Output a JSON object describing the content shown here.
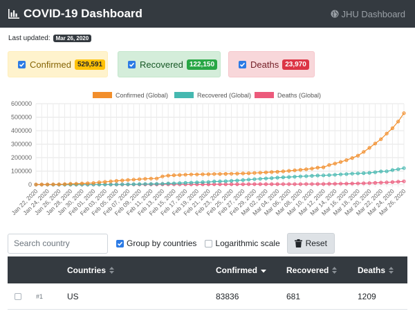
{
  "header": {
    "title": "COVID-19 Dashboard",
    "link": "JHU Dashboard"
  },
  "last_updated": {
    "label": "Last updated:",
    "date": "Mar 26, 2020"
  },
  "cards": [
    {
      "label": "Confirmed",
      "value": "529,591",
      "checked": true
    },
    {
      "label": "Recovered",
      "value": "122,150",
      "checked": true
    },
    {
      "label": "Deaths",
      "value": "23,970",
      "checked": true
    }
  ],
  "controls": {
    "search_placeholder": "Search country",
    "group_label": "Group by countries",
    "group_checked": true,
    "log_label": "Logarithmic scale",
    "log_checked": false,
    "reset_label": "Reset"
  },
  "table": {
    "columns": [
      "Countries",
      "Confirmed",
      "Recovered",
      "Deaths"
    ],
    "rows": [
      {
        "rank": "#1",
        "country": "US",
        "confirmed": "83836",
        "recovered": "681",
        "deaths": "1209"
      }
    ]
  },
  "colors": {
    "confirmed": "#f28e2b",
    "recovered": "#45b8b0",
    "deaths": "#ec5a7b",
    "navbar": "#343a40"
  },
  "chart_data": {
    "type": "line",
    "title": "",
    "xlabel": "",
    "ylabel": "",
    "ylim": [
      0,
      600000
    ],
    "yticks": [
      0,
      100000,
      200000,
      300000,
      400000,
      500000,
      600000
    ],
    "x": [
      "Jan 22, 2020",
      "Jan 23, 2020",
      "Jan 24, 2020",
      "Jan 25, 2020",
      "Jan 26, 2020",
      "Jan 27, 2020",
      "Jan 28, 2020",
      "Jan 29, 2020",
      "Jan 30, 2020",
      "Jan 31, 2020",
      "Feb 01, 2020",
      "Feb 02, 2020",
      "Feb 03, 2020",
      "Feb 04, 2020",
      "Feb 05, 2020",
      "Feb 06, 2020",
      "Feb 07, 2020",
      "Feb 08, 2020",
      "Feb 09, 2020",
      "Feb 10, 2020",
      "Feb 11, 2020",
      "Feb 12, 2020",
      "Feb 13, 2020",
      "Feb 14, 2020",
      "Feb 15, 2020",
      "Feb 16, 2020",
      "Feb 17, 2020",
      "Feb 18, 2020",
      "Feb 19, 2020",
      "Feb 20, 2020",
      "Feb 21, 2020",
      "Feb 22, 2020",
      "Feb 23, 2020",
      "Feb 24, 2020",
      "Feb 25, 2020",
      "Feb 26, 2020",
      "Feb 27, 2020",
      "Feb 28, 2020",
      "Feb 29, 2020",
      "Mar 01, 2020",
      "Mar 02, 2020",
      "Mar 03, 2020",
      "Mar 04, 2020",
      "Mar 05, 2020",
      "Mar 06, 2020",
      "Mar 07, 2020",
      "Mar 08, 2020",
      "Mar 09, 2020",
      "Mar 10, 2020",
      "Mar 11, 2020",
      "Mar 12, 2020",
      "Mar 13, 2020",
      "Mar 14, 2020",
      "Mar 15, 2020",
      "Mar 16, 2020",
      "Mar 17, 2020",
      "Mar 18, 2020",
      "Mar 19, 2020",
      "Mar 20, 2020",
      "Mar 21, 2020",
      "Mar 22, 2020",
      "Mar 23, 2020",
      "Mar 24, 2020",
      "Mar 25, 2020",
      "Mar 26, 2020"
    ],
    "series": [
      {
        "name": "Confirmed (Global)",
        "values": [
          555,
          654,
          941,
          1434,
          2118,
          2927,
          5578,
          6166,
          8234,
          9927,
          12038,
          16787,
          19881,
          23892,
          27635,
          30794,
          34391,
          37120,
          40150,
          42762,
          44802,
          45221,
          60368,
          66885,
          69030,
          71224,
          73258,
          75136,
          75639,
          76197,
          76819,
          78572,
          78958,
          79561,
          80406,
          81388,
          82746,
          84112,
          86011,
          88369,
          90306,
          92840,
          95120,
          97886,
          101800,
          105836,
          109835,
          113582,
          118582,
          125865,
          128343,
          145193,
          156097,
          167449,
          181546,
          197168,
          214915,
          242713,
          272167,
          304528,
          336953,
          378235,
          418045,
          467653,
          529591
        ]
      },
      {
        "name": "Recovered (Global)",
        "values": [
          28,
          30,
          36,
          39,
          52,
          61,
          107,
          126,
          143,
          222,
          284,
          472,
          623,
          852,
          1124,
          1487,
          2011,
          2616,
          3244,
          3946,
          4683,
          5150,
          6295,
          8058,
          9395,
          10865,
          12583,
          14352,
          16121,
          18177,
          18890,
          22886,
          23394,
          25227,
          27905,
          30384,
          33277,
          36711,
          39782,
          42716,
          45602,
          48228,
          51171,
          53797,
          55866,
          58359,
          60694,
          62494,
          64404,
          67003,
          68324,
          70251,
          72624,
          76034,
          78088,
          80840,
          83207,
          84854,
          87256,
          91676,
          97243,
          98334,
          107890,
          113787,
          122150
        ]
      },
      {
        "name": "Deaths (Global)",
        "values": [
          17,
          18,
          26,
          42,
          56,
          82,
          131,
          133,
          171,
          213,
          259,
          362,
          426,
          492,
          564,
          634,
          719,
          806,
          906,
          1013,
          1113,
          1118,
          1371,
          1523,
          1666,
          1770,
          1868,
          2007,
          2122,
          2247,
          2251,
          2458,
          2469,
          2629,
          2708,
          2770,
          2814,
          2872,
          2941,
          2996,
          3085,
          3160,
          3254,
          3348,
          3460,
          3558,
          3803,
          3996,
          4262,
          4615,
          4720,
          5404,
          5819,
          6440,
          7126,
          7905,
          8733,
          9867,
          11299,
          12973,
          14651,
          16505,
          18625,
          21181,
          23970
        ]
      }
    ],
    "legend_position": "top"
  }
}
